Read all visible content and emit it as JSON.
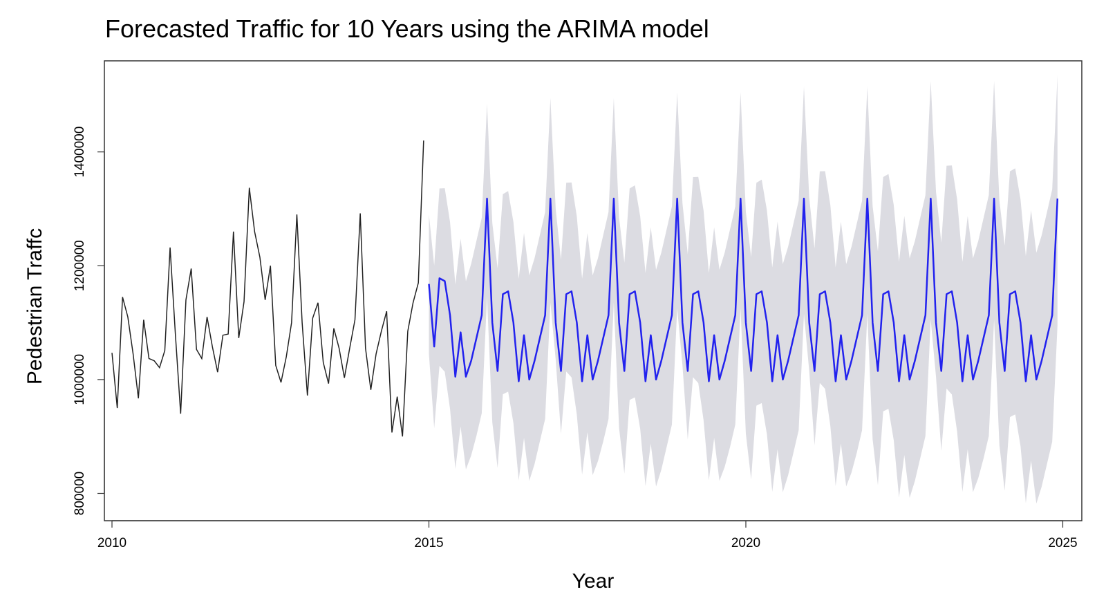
{
  "chart_data": {
    "type": "line",
    "title": "Forecasted Traffic for 10 Years using the ARIMA model",
    "xlabel": "Year",
    "ylabel": "Pedestrian Traffc",
    "xlim": [
      2009.88,
      2025.3
    ],
    "ylim": [
      752000,
      1560000
    ],
    "x_ticks": [
      "2010",
      "2015",
      "2020",
      "2025"
    ],
    "x_tick_values": [
      2010,
      2015,
      2020,
      2025
    ],
    "y_ticks": [
      "800000",
      "1000000",
      "1200000",
      "1400000"
    ],
    "y_tick_values": [
      800000,
      1000000,
      1200000,
      1400000
    ],
    "grid": false,
    "legend": "none",
    "colors": {
      "observed": "#222222",
      "forecast": "#2222ee",
      "interval": "#dcdce2"
    },
    "observed": {
      "start": 2010,
      "step": 0.08333,
      "values": [
        1047000,
        950000,
        1145000,
        1110000,
        1045000,
        967000,
        1105000,
        1037000,
        1033000,
        1021000,
        1051000,
        1232000,
        1080000,
        940000,
        1140000,
        1195000,
        1053000,
        1037000,
        1110000,
        1058000,
        1013000,
        1078000,
        1080000,
        1260000,
        1073000,
        1137000,
        1337000,
        1260000,
        1215000,
        1140000,
        1200000,
        1025000,
        995000,
        1040000,
        1100000,
        1290000,
        1100000,
        972000,
        1108000,
        1135000,
        1030000,
        993000,
        1090000,
        1055000,
        1003000,
        1055000,
        1105000,
        1292000,
        1055000,
        982000,
        1045000,
        1085000,
        1120000,
        907000,
        970000,
        900000,
        1085000,
        1135000,
        1170000,
        1420000
      ]
    },
    "forecast": {
      "start": 2015,
      "step": 0.08333,
      "values": [
        1168000,
        1058000,
        1178000,
        1173000,
        1113000,
        1005000,
        1083000,
        1005000,
        1033000,
        1073000,
        1113000,
        1318000,
        1100000,
        1015000,
        1150000,
        1155000,
        1100000,
        997000,
        1078000,
        1000000,
        1033000,
        1073000,
        1113000,
        1318000,
        1100000,
        1015000,
        1150000,
        1155000,
        1100000,
        997000,
        1078000,
        1000000,
        1033000,
        1073000,
        1113000,
        1318000,
        1100000,
        1015000,
        1150000,
        1155000,
        1100000,
        997000,
        1078000,
        1000000,
        1033000,
        1073000,
        1113000,
        1318000,
        1100000,
        1015000,
        1150000,
        1155000,
        1100000,
        997000,
        1078000,
        1000000,
        1033000,
        1073000,
        1113000,
        1318000,
        1100000,
        1015000,
        1150000,
        1155000,
        1100000,
        997000,
        1078000,
        1000000,
        1033000,
        1073000,
        1113000,
        1318000,
        1100000,
        1015000,
        1150000,
        1155000,
        1100000,
        997000,
        1078000,
        1000000,
        1033000,
        1073000,
        1113000,
        1318000,
        1100000,
        1015000,
        1150000,
        1155000,
        1100000,
        997000,
        1078000,
        1000000,
        1033000,
        1073000,
        1113000,
        1318000,
        1100000,
        1015000,
        1150000,
        1155000,
        1100000,
        997000,
        1078000,
        1000000,
        1033000,
        1073000,
        1113000,
        1318000,
        1100000,
        1015000,
        1150000,
        1155000,
        1100000,
        997000,
        1078000,
        1000000,
        1033000,
        1073000,
        1113000,
        1318000
      ]
    },
    "interval_upper_base": [
      1290000,
      1200000,
      1335000,
      1335000,
      1275000,
      1165000,
      1245000,
      1170000,
      1200000,
      1240000,
      1280000,
      1480000,
      1270000,
      1190000,
      1320000,
      1325000,
      1270000,
      1170000,
      1250000,
      1175000,
      1205000,
      1245000,
      1285000,
      1485000
    ],
    "interval_lower_base": [
      1045000,
      915000,
      1025000,
      1015000,
      950000,
      845000,
      920000,
      845000,
      870000,
      905000,
      945000,
      1150000,
      930000,
      850000,
      980000,
      985000,
      930000,
      830000,
      905000,
      830000,
      860000,
      900000,
      940000,
      1145000
    ],
    "interval_widen_per_year": 5000
  }
}
